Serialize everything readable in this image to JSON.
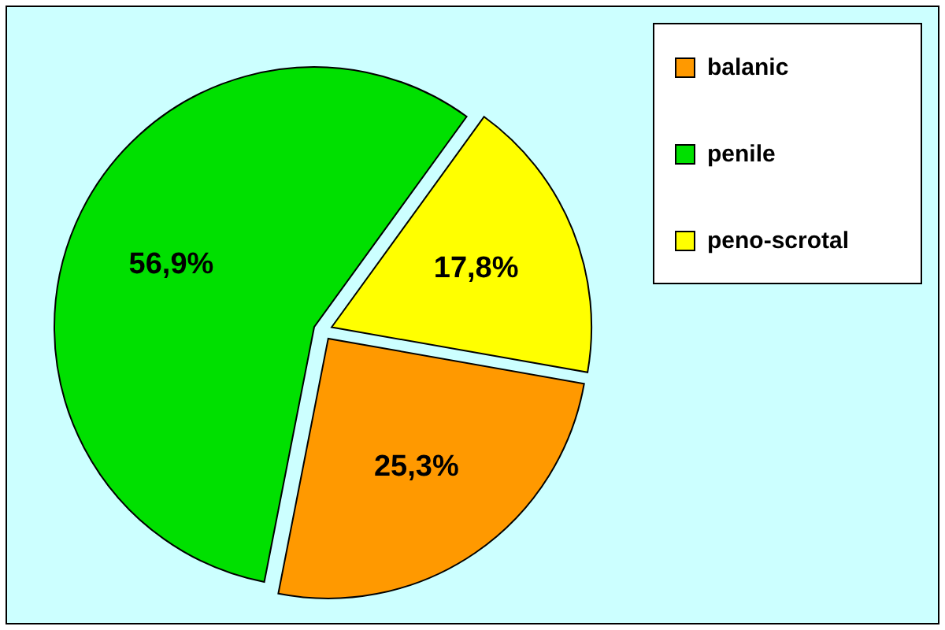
{
  "chart_data": {
    "type": "pie",
    "categories": [
      "balanic",
      "penile",
      "peno-scrotal"
    ],
    "values": [
      25.3,
      56.9,
      17.8
    ],
    "colors": [
      "#ff9900",
      "#00e000",
      "#ffff00"
    ],
    "value_labels": [
      "25,3%",
      "56,9%",
      "17,8%"
    ],
    "legend": "top right"
  }
}
